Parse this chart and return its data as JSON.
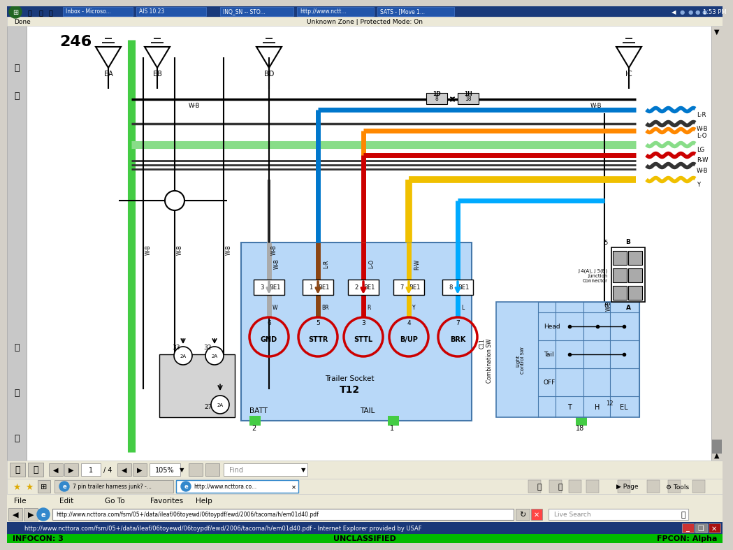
{
  "title_bar_color": "#00cc00",
  "title_bar_text_left": "INFOCON: 3",
  "title_bar_text_center": "UNCLASSIFIED",
  "title_bar_text_right": "FPCON: Alpha",
  "url_text": "http://www.ncttora.com/fsm/05+/data/ileaf/06toyewd/06toypdf/ewd/2006/tacoma/h/em01d40.pdf - Internet Explorer provided by USAF",
  "address_bar_url": "http://www.ncttora.com/fsm/05+/data/ileaf/06toyewd/06toypdf/ewd/2006/tacoma/h/em01d40.pdf",
  "status_bar_text": "Unknown Zone | Protected Mode: On",
  "taskbar_time": "1:53 PM",
  "page_number": "246",
  "connector_labels": [
    "GND",
    "STTR",
    "STTL",
    "B/UP",
    "BRK"
  ],
  "connector_numbers": [
    "6",
    "5",
    "3",
    "4",
    "7"
  ],
  "ground_labels": [
    "EA",
    "EB",
    "BD",
    "IC"
  ],
  "tab1_text": "7 pin trailer harness junk? -...",
  "tab2_text": "http://www.ncttora.co...",
  "menu_items": [
    "File",
    "Edit",
    "Go To",
    "Favorites",
    "Help"
  ],
  "taskbar_items": [
    "Inbox - Microso...",
    "AIS 10.23",
    "INQ_SN -- STO...",
    "http://www.nctt...",
    "SATS - [Move 1..."
  ],
  "wire_connector_colors": [
    "#aaaaaa",
    "#8B4513",
    "#cc0000",
    "#f0c000",
    "#00aaff"
  ],
  "wire_label_below": [
    "W",
    "BR",
    "R",
    "Y",
    "L"
  ],
  "be1_nums": [
    "3",
    "1",
    "2",
    "7",
    "8"
  ],
  "be1_wire_labels": [
    "W-B",
    "L-R",
    "L-O",
    "R-W",
    ""
  ],
  "right_bundle_labels": [
    "Y",
    "R-W",
    "L-O",
    "L-R",
    "W-B",
    "LG",
    "W-B"
  ],
  "right_bundle_colors": [
    "#f0c000",
    "#cc0000",
    "#ff8800",
    "#cc6666",
    "#333333",
    "#88dd88",
    "#333333"
  ]
}
